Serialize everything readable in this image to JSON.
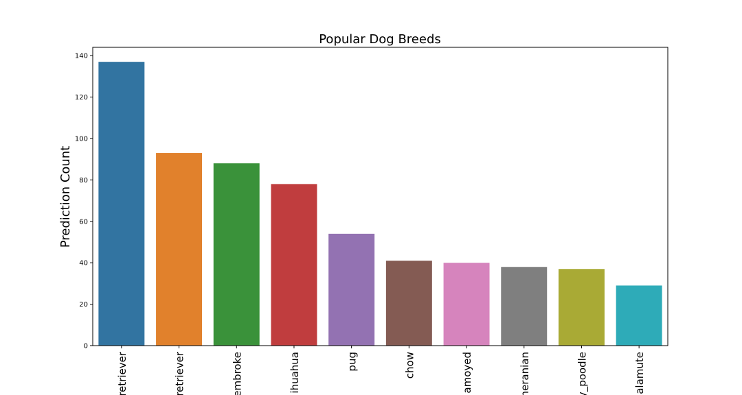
{
  "chart_data": {
    "type": "bar",
    "title": "Popular Dog Breeds",
    "y_label": "Prediction Count",
    "categories": [
      "retriever",
      "retriever",
      "embroke",
      "ihuahua",
      "pug",
      "chow",
      "amoyed",
      "neranian",
      "y_poodle",
      "alamute"
    ],
    "values": [
      137,
      93,
      88,
      78,
      54,
      41,
      40,
      38,
      37,
      29
    ],
    "colors": [
      "#3274a1",
      "#e1812c",
      "#3a923a",
      "#c03d3e",
      "#9372b2",
      "#845b53",
      "#d684bd",
      "#7f7f7f",
      "#a9aa35",
      "#2eabb8"
    ],
    "ylim": [
      0,
      144
    ],
    "yticks": [
      0,
      20,
      40,
      60,
      80,
      100,
      120,
      140
    ]
  }
}
